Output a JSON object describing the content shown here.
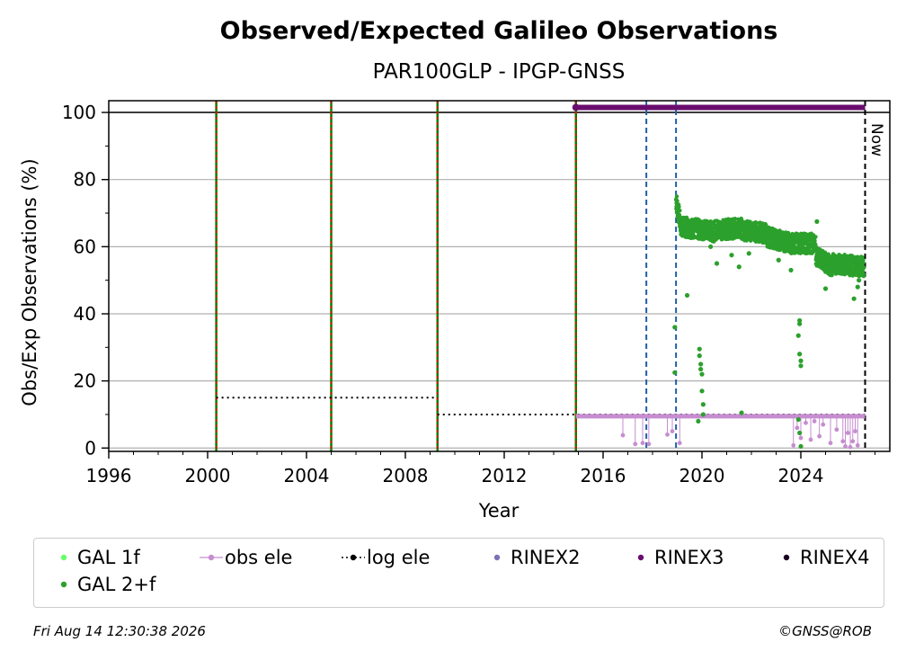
{
  "chart_data": {
    "type": "scatter",
    "title": "Observed/Expected Galileo Observations",
    "subtitle": "PAR100GLP - IPGP-GNSS",
    "xlabel": "Year",
    "ylabel": "Obs/Exp Observations (%)",
    "xlim": [
      1996,
      2027.6
    ],
    "ylim": [
      -1,
      103.5
    ],
    "x_ticks": [
      1996,
      2000,
      2004,
      2008,
      2012,
      2016,
      2020,
      2024
    ],
    "x_tick_labels": [
      "1996",
      "2000",
      "2004",
      "2008",
      "2012",
      "2016",
      "2020",
      "2024"
    ],
    "y_ticks": [
      0,
      20,
      40,
      60,
      80,
      100
    ],
    "y_tick_labels": [
      "0",
      "20",
      "40",
      "60",
      "80",
      "100"
    ],
    "grid": "horizontal",
    "now_label": "Now",
    "now_x": 2026.6,
    "red_green_event_lines": [
      2000.35,
      2005.0,
      2009.3,
      2014.9
    ],
    "blue_event_lines": [
      2017.75,
      2018.95
    ],
    "log_ele_steps": [
      {
        "x_start": 2000.35,
        "x_end": 2009.3,
        "y": 15
      },
      {
        "x_start": 2009.3,
        "x_end": 2026.6,
        "y": 10
      }
    ],
    "rinex3_bar": {
      "x_start": 2014.9,
      "x_end": 2026.6,
      "y": 101.5
    },
    "obs_ele_line": {
      "x_start": 2014.9,
      "x_end": 2026.6,
      "y": 9.5
    },
    "obs_ele_dips": [
      [
        2016.8,
        3.8
      ],
      [
        2017.3,
        1.2
      ],
      [
        2017.6,
        1.5
      ],
      [
        2017.85,
        1.2
      ],
      [
        2018.6,
        4.0
      ],
      [
        2018.8,
        5.0
      ],
      [
        2019.1,
        1.5
      ],
      [
        2023.7,
        0.8
      ],
      [
        2023.85,
        6.0
      ],
      [
        2024.0,
        3.0
      ],
      [
        2024.2,
        7.5
      ],
      [
        2024.4,
        2.5
      ],
      [
        2024.55,
        8.0
      ],
      [
        2024.75,
        3.5
      ],
      [
        2024.9,
        7.0
      ],
      [
        2025.2,
        1.5
      ],
      [
        2025.45,
        5.5
      ],
      [
        2025.7,
        2.0
      ],
      [
        2025.8,
        0.5
      ],
      [
        2025.9,
        4.5
      ],
      [
        2026.0,
        0.3
      ],
      [
        2026.1,
        2.0
      ],
      [
        2026.2,
        5.0
      ],
      [
        2026.3,
        0.8
      ]
    ],
    "gal_2f_segments": [
      {
        "x_start": 2018.95,
        "x_end": 2019.15,
        "y_start": 74,
        "y_end": 66
      },
      {
        "x_start": 2019.15,
        "x_end": 2020.5,
        "y_start": 66,
        "y_end": 64.5
      },
      {
        "x_start": 2020.5,
        "x_end": 2021.6,
        "y_start": 65,
        "y_end": 65.5
      },
      {
        "x_start": 2021.6,
        "x_end": 2022.6,
        "y_start": 65,
        "y_end": 64
      },
      {
        "x_start": 2022.6,
        "x_end": 2023.6,
        "y_start": 63,
        "y_end": 61
      },
      {
        "x_start": 2023.6,
        "x_end": 2024.6,
        "y_start": 61,
        "y_end": 61
      },
      {
        "x_start": 2024.6,
        "x_end": 2025.3,
        "y_start": 57,
        "y_end": 54
      },
      {
        "x_start": 2025.3,
        "x_end": 2026.55,
        "y_start": 55,
        "y_end": 54
      }
    ],
    "gal_2f_outliers": [
      [
        2018.9,
        36
      ],
      [
        2018.9,
        22.5
      ],
      [
        2019.4,
        45.5
      ],
      [
        2019.85,
        8
      ],
      [
        2019.9,
        29.5
      ],
      [
        2019.9,
        27.5
      ],
      [
        2019.95,
        25
      ],
      [
        2019.95,
        23.5
      ],
      [
        2020.0,
        22
      ],
      [
        2020.0,
        17
      ],
      [
        2020.05,
        13
      ],
      [
        2020.05,
        10
      ],
      [
        2020.35,
        60
      ],
      [
        2020.6,
        55
      ],
      [
        2021.2,
        57.5
      ],
      [
        2021.5,
        54
      ],
      [
        2021.6,
        10.5
      ],
      [
        2021.9,
        58
      ],
      [
        2023.1,
        56
      ],
      [
        2023.6,
        53
      ],
      [
        2023.95,
        38
      ],
      [
        2023.95,
        37
      ],
      [
        2023.9,
        33.5
      ],
      [
        2023.95,
        28
      ],
      [
        2024.0,
        26
      ],
      [
        2024.0,
        24.5
      ],
      [
        2023.9,
        8.5
      ],
      [
        2023.95,
        4.5
      ],
      [
        2024.0,
        0.5
      ],
      [
        2024.65,
        67.5
      ],
      [
        2025.0,
        47.5
      ],
      [
        2026.15,
        44.5
      ],
      [
        2026.3,
        48
      ],
      [
        2026.35,
        50
      ]
    ],
    "legend": [
      {
        "label": "GAL 1f",
        "color": "#66ff66",
        "marker": "dot"
      },
      {
        "label": "obs ele",
        "color": "#c68dd0",
        "marker": "line-dot"
      },
      {
        "label": "log ele",
        "color": "#000000",
        "marker": "dotted-line-dot"
      },
      {
        "label": "RINEX2",
        "color": "#7b72b8",
        "marker": "dot"
      },
      {
        "label": "RINEX3",
        "color": "#6a0d6e",
        "marker": "dot"
      },
      {
        "label": "RINEX4",
        "color": "#1a001f",
        "marker": "dot"
      },
      {
        "label": "GAL 2+f",
        "color": "#2ca02c",
        "marker": "dot"
      }
    ],
    "legend_placement": "bottom",
    "colors": {
      "gal_2f": "#2ca02c",
      "obs_ele": "#c68dd0",
      "rinex3": "#6a0d6e",
      "red_line": "#ff0000",
      "green_line": "#008000",
      "blue_line": "#1f5fa8",
      "grid": "#b0b0b0"
    }
  },
  "footer": {
    "timestamp": "Fri Aug 14 12:30:38 2026",
    "credit": "©GNSS@ROB"
  }
}
